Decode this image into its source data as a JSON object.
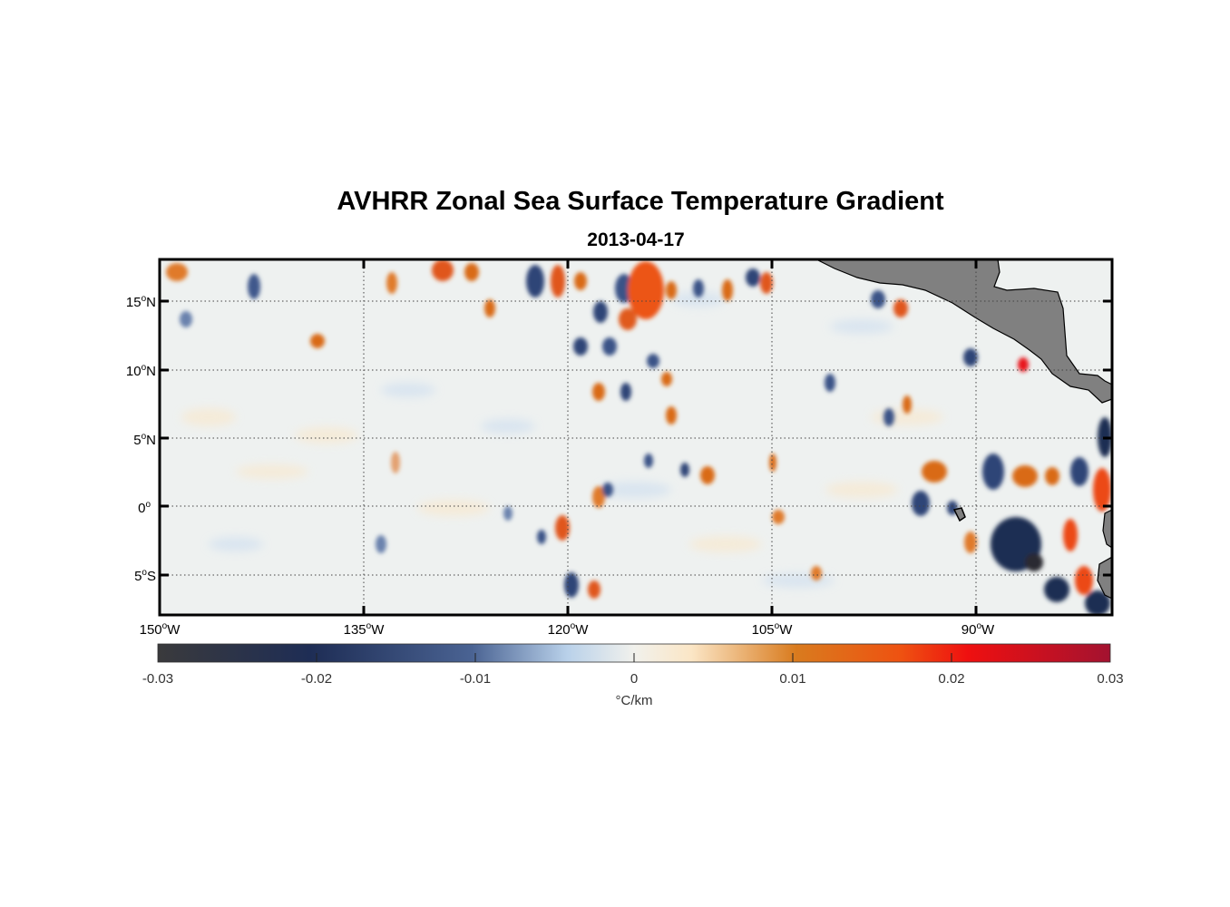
{
  "map": {
    "title": "AVHRR Zonal Sea Surface Temperature Gradient",
    "date": "2013-04-17",
    "lat_labels": [
      "15",
      "10",
      "5",
      "0",
      "5"
    ],
    "lat_suffix": [
      "N",
      "N",
      "N",
      "",
      "S"
    ],
    "lon_labels": [
      "150",
      "135",
      "120",
      "105",
      "90"
    ],
    "lon_suffix": "W",
    "degree_symbol": "o",
    "lon_range": [
      -150,
      -80
    ],
    "lat_range": [
      -8,
      18
    ],
    "land_color": "#808080"
  },
  "colorbar": {
    "ticks": [
      "-0.03",
      "-0.02",
      "-0.01",
      "0",
      "0.01",
      "0.02",
      "0.03"
    ],
    "range": [
      -0.03,
      0.03
    ],
    "unit": "°C/km",
    "colors": [
      "#3a3a3c",
      "#1e2d55",
      "#4a6393",
      "#b9d1ea",
      "#f1f1ec",
      "#fbe6c6",
      "#d97b1e",
      "#ee5211",
      "#ef1010",
      "#a31230"
    ]
  }
}
